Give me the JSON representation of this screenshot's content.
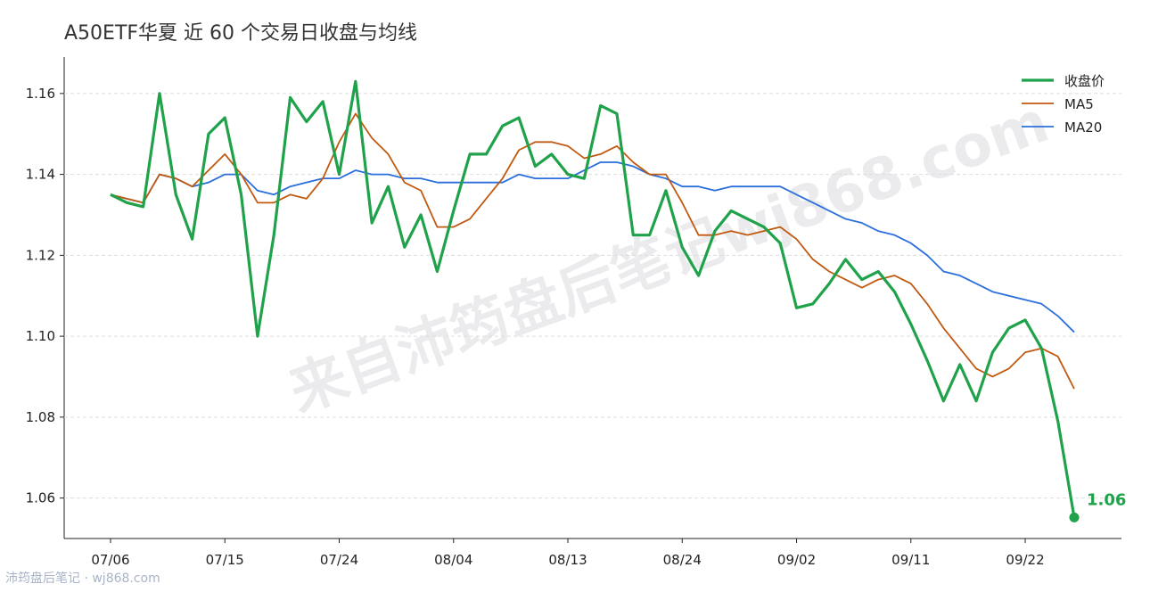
{
  "chart_data": {
    "type": "line",
    "title": "A50ETF华夏 近 60 个交易日收盘与均线",
    "watermark": "来自沛筠盘后笔记wj868.com",
    "footer": "沛筠盘后笔记 · wj868.com",
    "categories": [
      "07/06",
      null,
      null,
      null,
      null,
      null,
      null,
      "07/15",
      null,
      null,
      null,
      null,
      null,
      null,
      "07/24",
      null,
      null,
      null,
      null,
      null,
      null,
      "08/04",
      null,
      null,
      null,
      null,
      null,
      null,
      "08/13",
      null,
      null,
      null,
      null,
      null,
      null,
      "08/24",
      null,
      null,
      null,
      null,
      null,
      null,
      "09/02",
      null,
      null,
      null,
      null,
      null,
      null,
      "09/11",
      null,
      null,
      null,
      null,
      null,
      null,
      "09/22",
      null,
      null,
      null
    ],
    "series": [
      {
        "name": "收盘价",
        "color": "#1fa24a",
        "width": 3.2,
        "values": [
          1.135,
          1.133,
          1.132,
          1.16,
          1.135,
          1.124,
          1.15,
          1.154,
          1.135,
          1.1,
          1.125,
          1.159,
          1.153,
          1.158,
          1.14,
          1.163,
          1.128,
          1.137,
          1.122,
          1.13,
          1.116,
          1.131,
          1.145,
          1.145,
          1.152,
          1.154,
          1.142,
          1.145,
          1.14,
          1.139,
          1.157,
          1.155,
          1.125,
          1.125,
          1.136,
          1.122,
          1.115,
          1.126,
          1.131,
          1.129,
          1.127,
          1.123,
          1.107,
          1.108,
          1.113,
          1.119,
          1.114,
          1.116,
          1.111,
          1.103,
          1.094,
          1.084,
          1.093,
          1.084,
          1.096,
          1.102,
          1.104,
          1.097,
          1.079,
          1.0552
        ],
        "value_labels": [
          null,
          null,
          null,
          null,
          null,
          null,
          null,
          null,
          null,
          null,
          null,
          null,
          null,
          null,
          null,
          null,
          null,
          null,
          null,
          null,
          null,
          null,
          null,
          null,
          null,
          null,
          null,
          null,
          null,
          null,
          null,
          null,
          null,
          null,
          null,
          null,
          null,
          null,
          null,
          null,
          null,
          null,
          null,
          null,
          null,
          null,
          null,
          null,
          null,
          null,
          null,
          null,
          null,
          null,
          null,
          null,
          null,
          null,
          null,
          "1.06"
        ]
      },
      {
        "name": "MA5",
        "color": "#c05a10",
        "width": 1.8,
        "values": [
          1.135,
          1.134,
          1.133,
          1.14,
          1.139,
          1.137,
          1.141,
          1.145,
          1.14,
          1.133,
          1.133,
          1.135,
          1.134,
          1.139,
          1.148,
          1.155,
          1.149,
          1.145,
          1.138,
          1.136,
          1.127,
          1.127,
          1.129,
          1.134,
          1.139,
          1.146,
          1.148,
          1.148,
          1.147,
          1.144,
          1.145,
          1.147,
          1.143,
          1.14,
          1.14,
          1.133,
          1.125,
          1.125,
          1.126,
          1.125,
          1.126,
          1.127,
          1.124,
          1.119,
          1.116,
          1.114,
          1.112,
          1.114,
          1.115,
          1.113,
          1.108,
          1.102,
          1.097,
          1.092,
          1.09,
          1.092,
          1.096,
          1.097,
          1.095,
          1.087
        ]
      },
      {
        "name": "MA20",
        "color": "#2a6fdb",
        "width": 1.8,
        "values": [
          1.135,
          1.134,
          1.133,
          1.14,
          1.139,
          1.137,
          1.138,
          1.14,
          1.14,
          1.136,
          1.135,
          1.137,
          1.138,
          1.139,
          1.139,
          1.141,
          1.14,
          1.14,
          1.139,
          1.139,
          1.138,
          1.138,
          1.138,
          1.138,
          1.138,
          1.14,
          1.139,
          1.139,
          1.139,
          1.141,
          1.143,
          1.143,
          1.142,
          1.14,
          1.139,
          1.137,
          1.137,
          1.136,
          1.137,
          1.137,
          1.137,
          1.137,
          1.135,
          1.133,
          1.131,
          1.129,
          1.128,
          1.126,
          1.125,
          1.123,
          1.12,
          1.116,
          1.115,
          1.113,
          1.111,
          1.11,
          1.109,
          1.108,
          1.105,
          1.101
        ]
      }
    ],
    "ylim": [
      1.05,
      1.169
    ],
    "yticks": [
      1.06,
      1.08,
      {
        "value": 1.1,
        "label": "1.10"
      },
      1.12,
      1.14,
      1.16
    ],
    "grid": true,
    "legend": "upper right"
  }
}
